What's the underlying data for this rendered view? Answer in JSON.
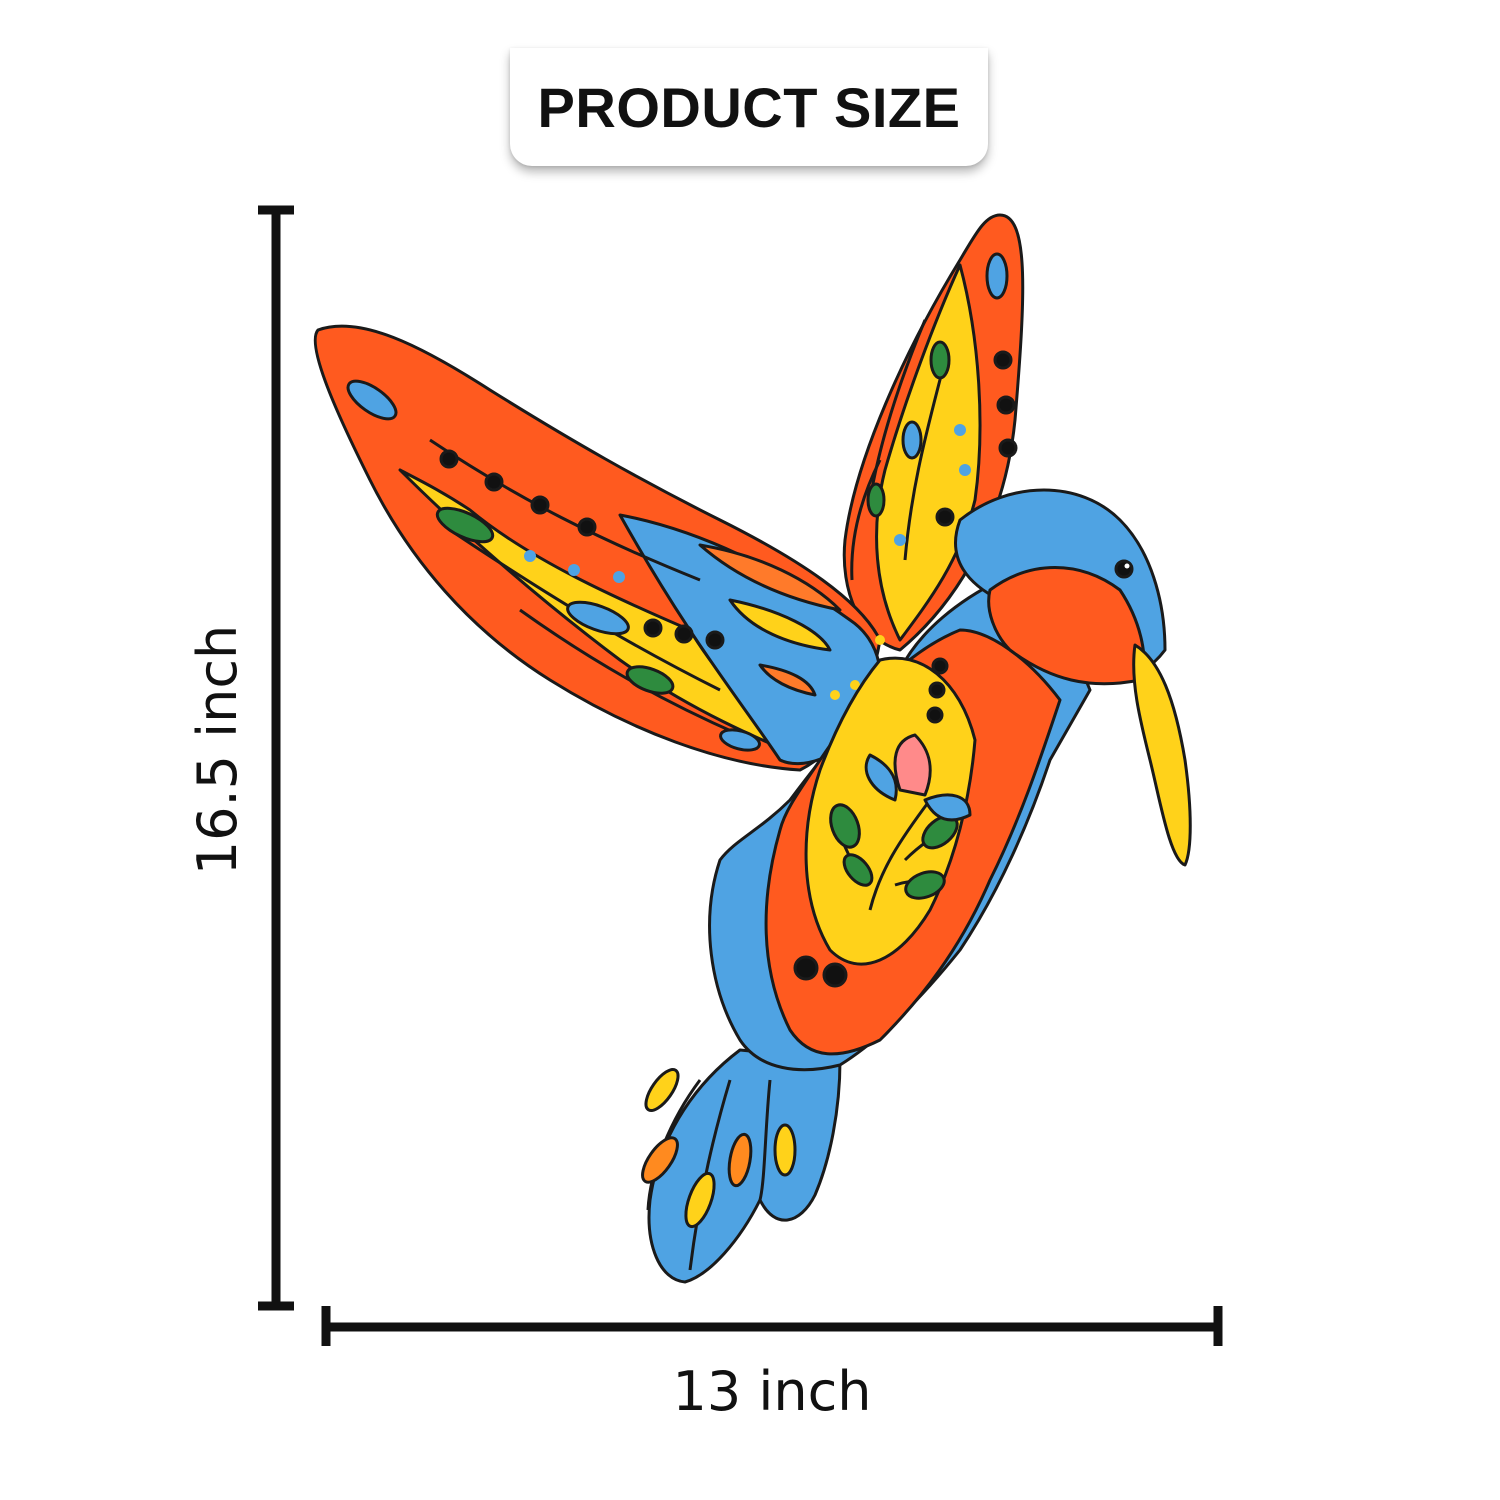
{
  "header": {
    "title": "PRODUCT SIZE"
  },
  "dimensions": {
    "height_label": "16.5 inch",
    "width_label": "13 inch"
  },
  "product": {
    "icon": "hummingbird-icon",
    "colors": {
      "blue": "#4fa3e3",
      "orange": "#ff5a1f",
      "yellow": "#ffd21a",
      "green": "#2e8b3e",
      "outline": "#1a1a1a"
    }
  }
}
